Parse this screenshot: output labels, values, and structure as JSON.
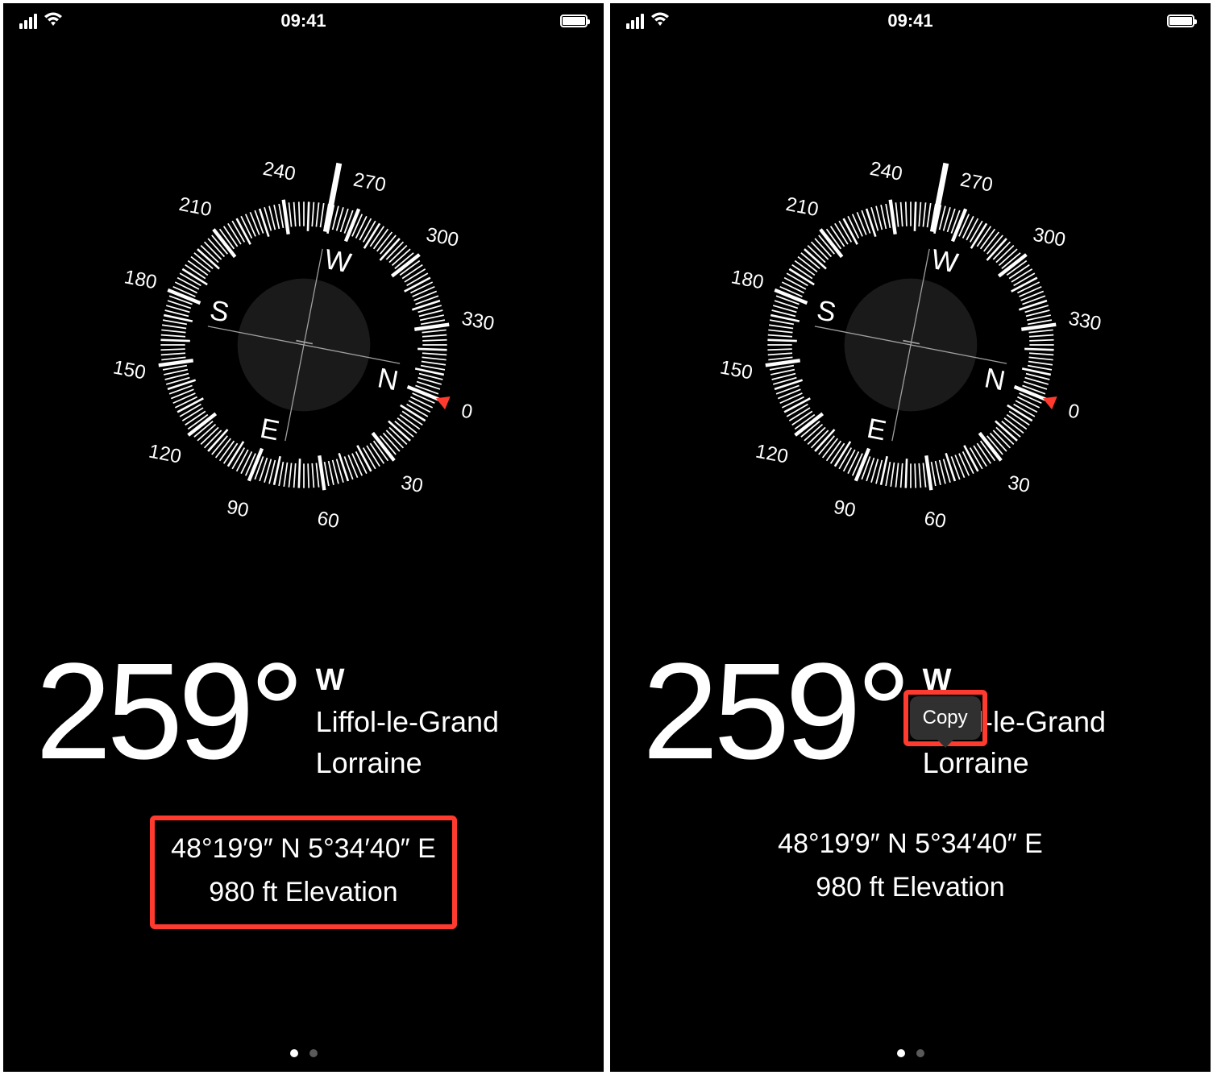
{
  "status": {
    "time": "09:41"
  },
  "compass": {
    "heading_deg": 259,
    "heading_offset_deg": 11,
    "cardinal_letters": [
      "N",
      "E",
      "S",
      "W"
    ],
    "degree_labels": [
      0,
      30,
      60,
      90,
      120,
      150,
      180,
      210,
      240,
      270,
      300,
      330
    ],
    "north_marker_color": "#ff3b30",
    "tick_color": "#ffffff",
    "center_circle_color": "#1a1a1a",
    "crosshair_color": "#a0a0a0"
  },
  "readout": {
    "heading_text": "259°",
    "cardinal": "W",
    "city": "Liffol-le-Grand",
    "region": "Lorraine",
    "coordinates": "48°19′9″ N  5°34′40″ E",
    "elevation": "980 ft Elevation"
  },
  "popover": {
    "copy_label": "Copy"
  },
  "highlight_color": "#ff3b30",
  "pager": {
    "current": 0,
    "total": 2
  }
}
